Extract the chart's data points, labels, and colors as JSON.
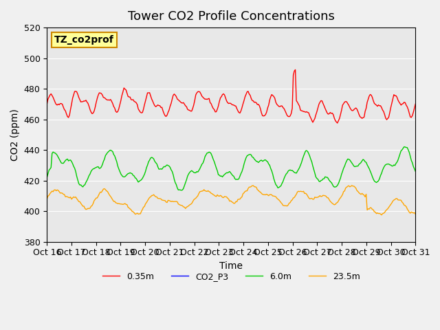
{
  "title": "Tower CO2 Profile Concentrations",
  "xlabel": "Time",
  "ylabel": "CO2 (ppm)",
  "ylim": [
    380,
    520
  ],
  "yticks": [
    380,
    400,
    420,
    440,
    460,
    480,
    500,
    520
  ],
  "xtick_labels": [
    "Oct 16",
    "Oct 17",
    "Oct 18",
    "Oct 19",
    "Oct 20",
    "Oct 21",
    "Oct 22",
    "Oct 23",
    "Oct 24",
    "Oct 25",
    "Oct 26",
    "Oct 27",
    "Oct 28",
    "Oct 29",
    "Oct 30",
    "Oct 31"
  ],
  "n_days": 15,
  "n_points": 360,
  "series_colors": {
    "red": "#ff0000",
    "green": "#00cc00",
    "orange": "#ffa500",
    "blue": "#0000ff"
  },
  "series_labels": [
    "0.35m",
    "CO2_P3",
    "6.0m",
    "23.5m"
  ],
  "bg_color": "#e8e8e8",
  "fig_bg_color": "#f0f0f0",
  "annotation_text": "TZ_co2prof",
  "annotation_bg": "#ffff99",
  "annotation_border": "#cc8800",
  "title_fontsize": 13,
  "axis_label_fontsize": 10,
  "tick_fontsize": 9,
  "line_width": 1.0
}
